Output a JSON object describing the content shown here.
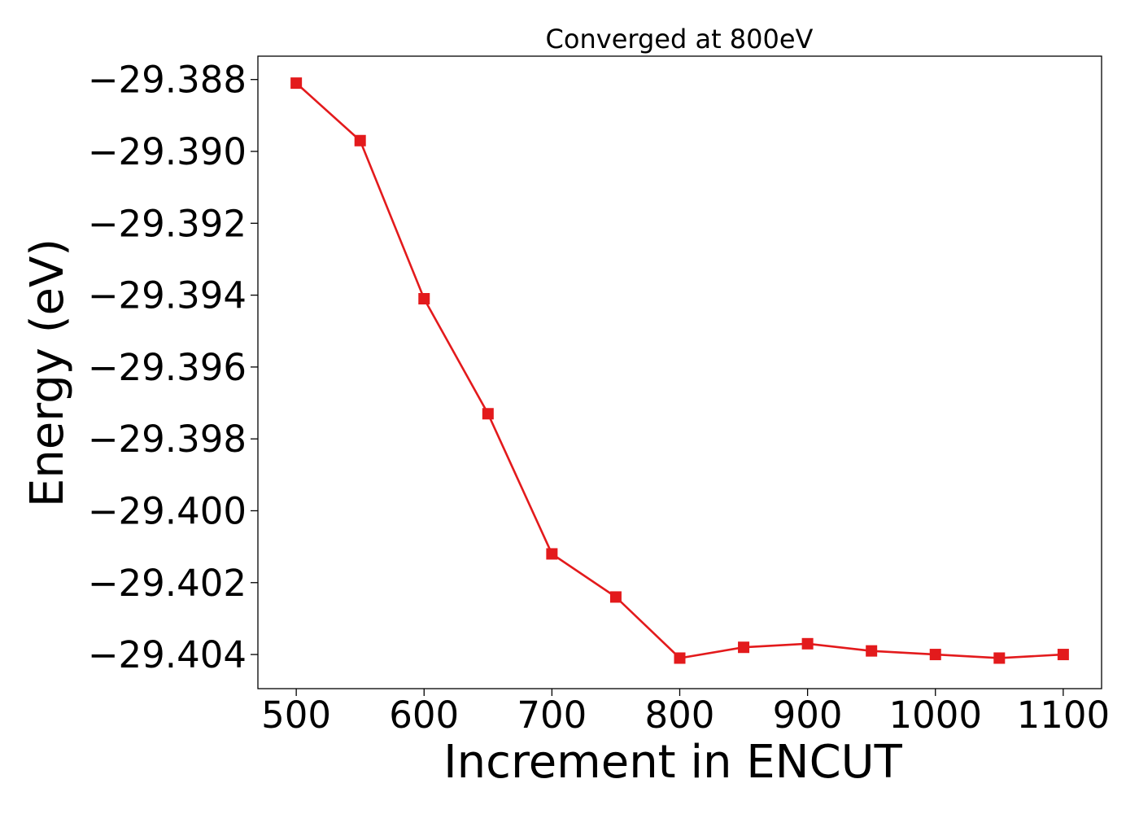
{
  "chart_data": {
    "type": "line",
    "title": "Converged at 800eV",
    "xlabel": "Increment in ENCUT",
    "ylabel": "Energy (eV)",
    "x": [
      500,
      550,
      600,
      650,
      700,
      750,
      800,
      850,
      900,
      950,
      1000,
      1050,
      1100
    ],
    "series": [
      {
        "values": [
          -29.3881,
          -29.3897,
          -29.3941,
          -29.3973,
          -29.4012,
          -29.4024,
          -29.4041,
          -29.4038,
          -29.4037,
          -29.4039,
          -29.404,
          -29.4041,
          -29.404
        ],
        "color": "#e31a1c",
        "marker": "square"
      }
    ],
    "xlim": [
      470,
      1130
    ],
    "ylim": [
      -29.40495,
      -29.38735
    ],
    "xticks": [
      500,
      600,
      700,
      800,
      900,
      1000,
      1100
    ],
    "xtick_labels": [
      "500",
      "600",
      "700",
      "800",
      "900",
      "1000",
      "1100"
    ],
    "yticks": [
      -29.388,
      -29.39,
      -29.392,
      -29.394,
      -29.396,
      -29.398,
      -29.4,
      -29.402,
      -29.404
    ],
    "ytick_labels": [
      "−29.388",
      "−29.390",
      "−29.392",
      "−29.394",
      "−29.396",
      "−29.398",
      "−29.400",
      "−29.402",
      "−29.404"
    ],
    "grid": false,
    "legend": "none"
  }
}
